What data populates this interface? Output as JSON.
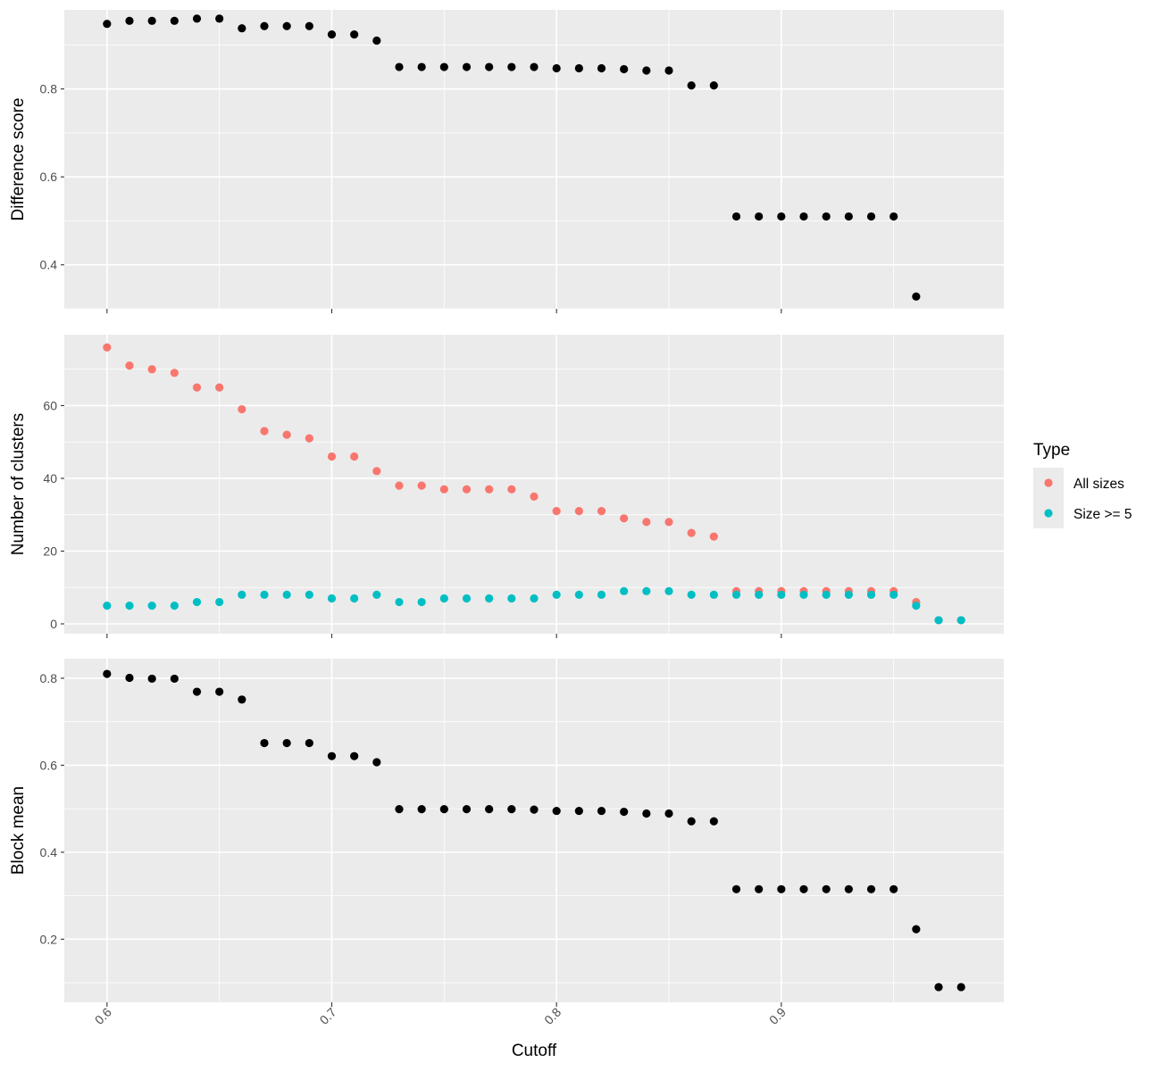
{
  "chart_data": {
    "type": "scatter",
    "facets": "3 stacked panels sharing the x axis",
    "xlabel": "Cutoff",
    "x_ticks": [
      "0.6",
      "0.7",
      "0.8",
      "0.9"
    ],
    "x_tick_values": [
      0.6,
      0.7,
      0.8,
      0.9
    ],
    "xlim": [
      0.581,
      0.999
    ],
    "grid": true,
    "legend": {
      "title": "Type",
      "placement": "right",
      "entries": [
        {
          "label": "All sizes",
          "color": "#F8766D"
        },
        {
          "label": "Size >= 5",
          "color": "#00BFC4"
        }
      ]
    },
    "panels": [
      {
        "ylabel": "Difference score",
        "y_ticks": [
          "0.4",
          "0.6",
          "0.8"
        ],
        "y_tick_values": [
          0.4,
          0.6,
          0.8
        ],
        "ylim": [
          0.3,
          0.98
        ],
        "series": [
          {
            "color": "#000000",
            "x": [
              0.6,
              0.61,
              0.62,
              0.63,
              0.64,
              0.65,
              0.66,
              0.67,
              0.68,
              0.69,
              0.7,
              0.71,
              0.72,
              0.73,
              0.74,
              0.75,
              0.76,
              0.77,
              0.78,
              0.79,
              0.8,
              0.81,
              0.82,
              0.83,
              0.84,
              0.85,
              0.86,
              0.87,
              0.88,
              0.89,
              0.9,
              0.91,
              0.92,
              0.93,
              0.94,
              0.95,
              0.96
            ],
            "y": [
              0.948,
              0.955,
              0.955,
              0.955,
              0.96,
              0.96,
              0.938,
              0.943,
              0.943,
              0.943,
              0.924,
              0.924,
              0.91,
              0.85,
              0.85,
              0.85,
              0.85,
              0.85,
              0.85,
              0.85,
              0.847,
              0.847,
              0.847,
              0.845,
              0.842,
              0.842,
              0.808,
              0.808,
              0.51,
              0.51,
              0.51,
              0.51,
              0.51,
              0.51,
              0.51,
              0.51,
              0.328
            ]
          }
        ]
      },
      {
        "ylabel": "Number of clusters",
        "y_ticks": [
          "0",
          "20",
          "40",
          "60"
        ],
        "y_tick_values": [
          0,
          20,
          40,
          60
        ],
        "ylim": [
          -2.7,
          79.5
        ],
        "series": [
          {
            "name": "All sizes",
            "color": "#F8766D",
            "x": [
              0.6,
              0.61,
              0.62,
              0.63,
              0.64,
              0.65,
              0.66,
              0.67,
              0.68,
              0.69,
              0.7,
              0.71,
              0.72,
              0.73,
              0.74,
              0.75,
              0.76,
              0.77,
              0.78,
              0.79,
              0.8,
              0.81,
              0.82,
              0.83,
              0.84,
              0.85,
              0.86,
              0.87,
              0.88,
              0.89,
              0.9,
              0.91,
              0.92,
              0.93,
              0.94,
              0.95,
              0.96,
              0.97,
              0.98
            ],
            "y": [
              76,
              71,
              70,
              69,
              65,
              65,
              59,
              53,
              52,
              51,
              46,
              46,
              42,
              38,
              38,
              37,
              37,
              37,
              37,
              35,
              31,
              31,
              31,
              29,
              28,
              28,
              25,
              24,
              9,
              9,
              9,
              9,
              9,
              9,
              9,
              9,
              6,
              1,
              1
            ]
          },
          {
            "name": "Size >= 5",
            "color": "#00BFC4",
            "x": [
              0.6,
              0.61,
              0.62,
              0.63,
              0.64,
              0.65,
              0.66,
              0.67,
              0.68,
              0.69,
              0.7,
              0.71,
              0.72,
              0.73,
              0.74,
              0.75,
              0.76,
              0.77,
              0.78,
              0.79,
              0.8,
              0.81,
              0.82,
              0.83,
              0.84,
              0.85,
              0.86,
              0.87,
              0.88,
              0.89,
              0.9,
              0.91,
              0.92,
              0.93,
              0.94,
              0.95,
              0.96,
              0.97,
              0.98
            ],
            "y": [
              5,
              5,
              5,
              5,
              6,
              6,
              8,
              8,
              8,
              8,
              7,
              7,
              8,
              6,
              6,
              7,
              7,
              7,
              7,
              7,
              8,
              8,
              8,
              9,
              9,
              9,
              8,
              8,
              8,
              8,
              8,
              8,
              8,
              8,
              8,
              8,
              5,
              1,
              1
            ]
          }
        ]
      },
      {
        "ylabel": "Block mean",
        "y_ticks": [
          "0.2",
          "0.4",
          "0.6",
          "0.8"
        ],
        "y_tick_values": [
          0.2,
          0.4,
          0.6,
          0.8
        ],
        "ylim": [
          0.055,
          0.845
        ],
        "series": [
          {
            "color": "#000000",
            "x": [
              0.6,
              0.61,
              0.62,
              0.63,
              0.64,
              0.65,
              0.66,
              0.67,
              0.68,
              0.69,
              0.7,
              0.71,
              0.72,
              0.73,
              0.74,
              0.75,
              0.76,
              0.77,
              0.78,
              0.79,
              0.8,
              0.81,
              0.82,
              0.83,
              0.84,
              0.85,
              0.86,
              0.87,
              0.88,
              0.89,
              0.9,
              0.91,
              0.92,
              0.93,
              0.94,
              0.95,
              0.96,
              0.97,
              0.98
            ],
            "y": [
              0.81,
              0.801,
              0.799,
              0.799,
              0.769,
              0.769,
              0.751,
              0.651,
              0.651,
              0.651,
              0.621,
              0.621,
              0.607,
              0.499,
              0.499,
              0.499,
              0.499,
              0.499,
              0.499,
              0.498,
              0.495,
              0.495,
              0.495,
              0.493,
              0.489,
              0.489,
              0.471,
              0.471,
              0.315,
              0.315,
              0.315,
              0.315,
              0.315,
              0.315,
              0.315,
              0.315,
              0.223,
              0.09,
              0.09
            ]
          }
        ]
      }
    ]
  }
}
